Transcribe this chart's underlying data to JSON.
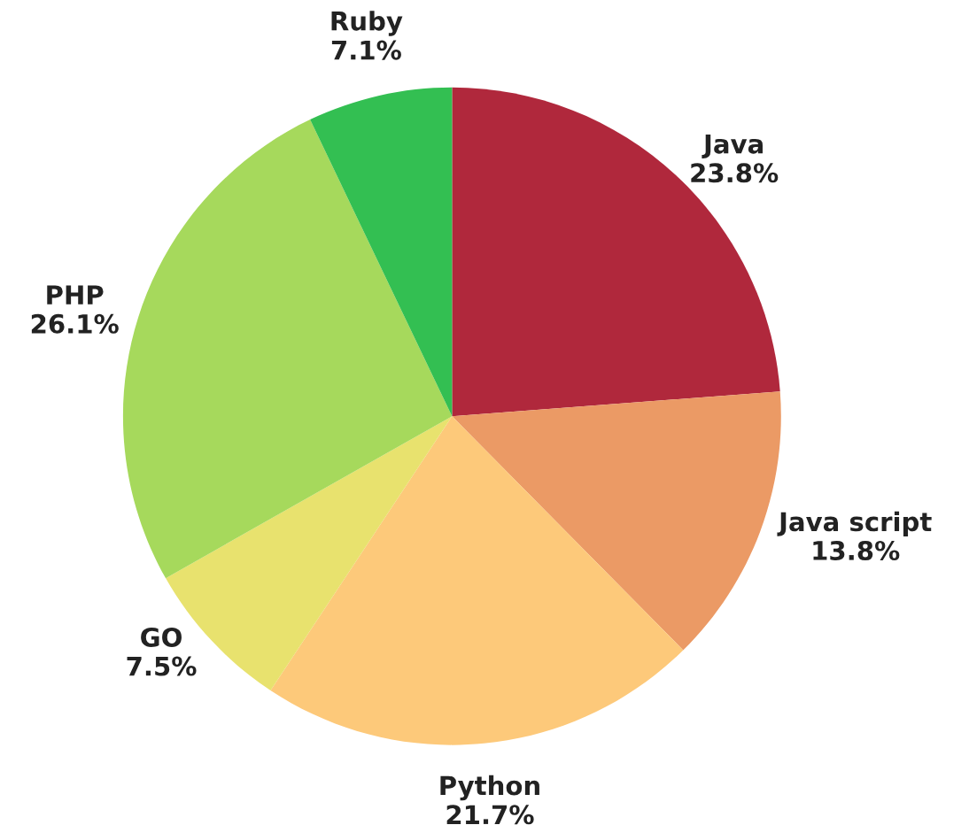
{
  "chart_data": {
    "type": "pie",
    "categories": [
      "Java",
      "Java script",
      "Python",
      "GO",
      "PHP",
      "Ruby"
    ],
    "values": [
      23.8,
      13.8,
      21.7,
      7.5,
      26.1,
      7.1
    ],
    "value_labels": [
      "23.8%",
      "13.8%",
      "21.7%",
      "7.5%",
      "26.1%",
      "7.1%"
    ],
    "colors": [
      "#b0283c",
      "#eb9a65",
      "#fdc97a",
      "#e8e26e",
      "#a6d95c",
      "#33bf52"
    ]
  }
}
